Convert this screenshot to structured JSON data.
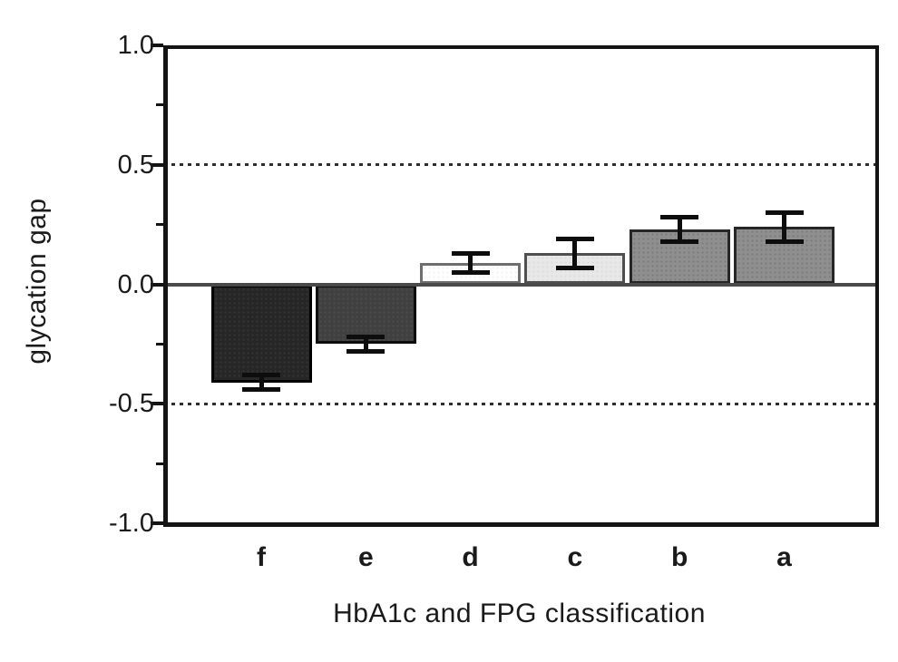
{
  "figure": {
    "background_color": "#ffffff",
    "axis_color": "#141414",
    "text_color": "#1a1a1a"
  },
  "chart_data": {
    "type": "bar",
    "title": "",
    "xlabel": "HbA1c and FPG classification",
    "ylabel": "glycation gap",
    "categories": [
      "f",
      "e",
      "d",
      "c",
      "b",
      "a"
    ],
    "values": [
      -0.41,
      -0.25,
      0.09,
      0.13,
      0.23,
      0.24
    ],
    "errors": [
      0.03,
      0.03,
      0.04,
      0.06,
      0.05,
      0.06
    ],
    "bar_fill_colors": [
      "#262626",
      "#404040",
      "#ffffff",
      "#e8e8e8",
      "#8f8f8f",
      "#8f8f8f"
    ],
    "bar_border_colors": [
      "#000000",
      "#0d0d0d",
      "#6e6e6e",
      "#4f4f4f",
      "#262626",
      "#262626"
    ],
    "error_bar_color": "#0d0d0d",
    "ylim": [
      -1.0,
      1.0
    ],
    "yticks": [
      {
        "value": 1.0,
        "label": "1.0"
      },
      {
        "value": 0.5,
        "label": "0.5"
      },
      {
        "value": 0.0,
        "label": "0.0"
      },
      {
        "value": -0.5,
        "label": "-0.5"
      },
      {
        "value": -1.0,
        "label": "-1.0"
      }
    ],
    "minor_yticks": [
      0.75,
      0.25,
      -0.25,
      -0.75
    ],
    "reference_lines": {
      "dashed_horizontal": [
        0.5,
        -0.5
      ],
      "solid_zero": 0.0
    },
    "grid": "off",
    "legend": "none"
  }
}
